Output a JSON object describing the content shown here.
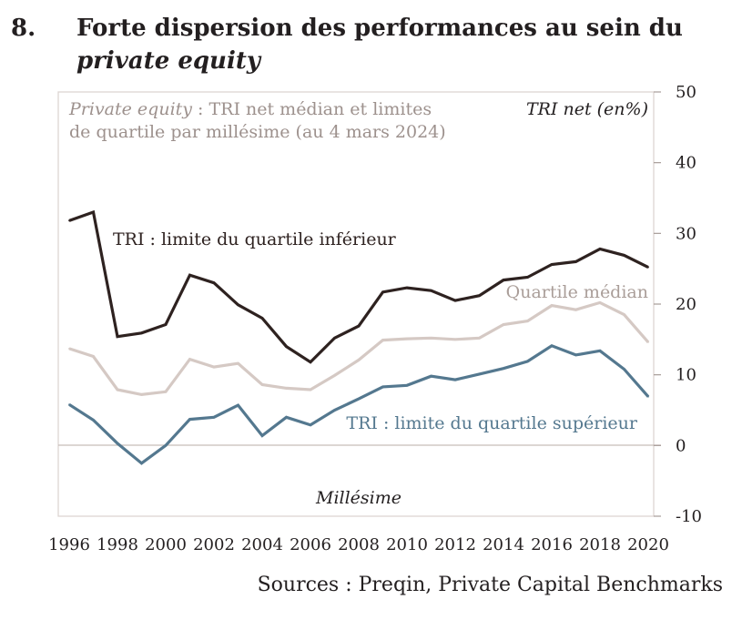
{
  "figure": {
    "number": "8.",
    "title_line1": "Forte dispersion des performances au sein du",
    "title_line2": "private equity",
    "sources": "Sources : Preqin, Private Capital Benchmarks"
  },
  "chart_data": {
    "type": "line",
    "subtitle_italic": "Private equity",
    "subtitle_rest": " : TRI net médian et limites",
    "subtitle_line2": "de quartile par millésime (au 4 mars 2024)",
    "ylabel": "TRI net (en%)",
    "xlabel": "Millésime",
    "ylim": [
      -10,
      50
    ],
    "yticks": [
      "50",
      "40",
      "30",
      "20",
      "10",
      "0",
      "-10"
    ],
    "xlim": [
      1996,
      2020
    ],
    "xticks": [
      "1996",
      "1998",
      "2000",
      "2002",
      "2004",
      "2006",
      "2008",
      "2010",
      "2012",
      "2014",
      "2016",
      "2018",
      "2020"
    ],
    "grid": false,
    "x": [
      1996,
      1997,
      1998,
      1999,
      2000,
      2001,
      2002,
      2003,
      2004,
      2005,
      2006,
      2007,
      2008,
      2009,
      2010,
      2011,
      2012,
      2013,
      2014,
      2015,
      2016,
      2017,
      2018,
      2019,
      2020
    ],
    "series": [
      {
        "name": "TRI : limite du quartile inférieur",
        "color": "#2e2220",
        "values": [
          31.8,
          33.0,
          15.4,
          15.9,
          17.1,
          24.1,
          23.0,
          19.9,
          18.0,
          14.0,
          11.8,
          15.2,
          16.9,
          21.7,
          22.3,
          21.9,
          20.5,
          21.2,
          23.4,
          23.8,
          25.6,
          26.0,
          27.8,
          26.9,
          25.2
        ]
      },
      {
        "name": "Quartile médian",
        "color": "#d5c9c4",
        "values": [
          13.7,
          12.6,
          7.9,
          7.2,
          7.6,
          12.2,
          11.1,
          11.6,
          8.6,
          8.1,
          7.9,
          9.9,
          12.1,
          14.9,
          15.1,
          15.2,
          15.0,
          15.2,
          17.1,
          17.6,
          19.8,
          19.2,
          20.2,
          18.5,
          14.6
        ]
      },
      {
        "name": "TRI : limite du quartile supérieur",
        "color": "#54788f",
        "values": [
          5.8,
          3.6,
          0.3,
          -2.5,
          0.0,
          3.7,
          4.0,
          5.7,
          1.4,
          4.0,
          2.9,
          5.0,
          6.6,
          8.3,
          8.5,
          9.8,
          9.3,
          10.1,
          10.9,
          11.9,
          14.1,
          12.8,
          13.4,
          10.8,
          6.9
        ]
      }
    ]
  }
}
